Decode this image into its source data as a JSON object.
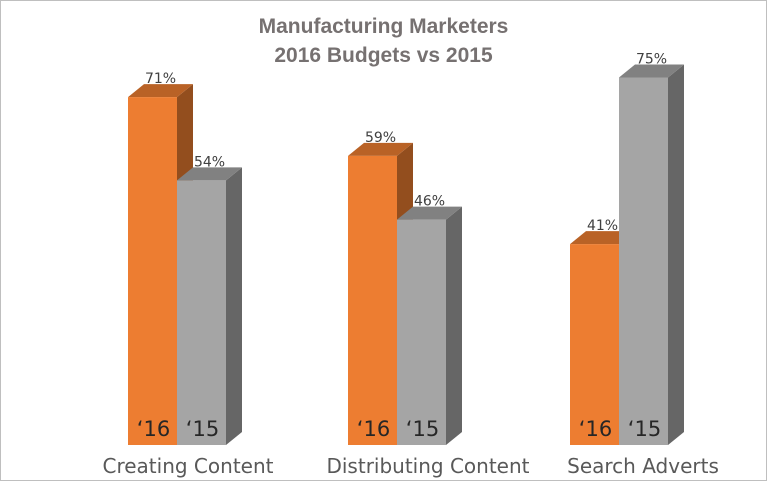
{
  "chart_data": {
    "type": "bar",
    "title": "Manufacturing Marketers",
    "subtitle": "2016 Budgets vs 2015",
    "categories": [
      "Creating Content",
      "Distributing Content",
      "Search Adverts"
    ],
    "series": [
      {
        "name": "'16",
        "bar_labels": [
          "‘16",
          "‘16",
          "‘16"
        ],
        "values": [
          71,
          59,
          41
        ],
        "value_labels": [
          "71%",
          "59%",
          "41%"
        ],
        "color": "#ED7D31"
      },
      {
        "name": "'15",
        "bar_labels": [
          "‘15",
          "‘15",
          "‘15"
        ],
        "values": [
          54,
          46,
          75
        ],
        "value_labels": [
          "54%",
          "46%",
          "75%"
        ],
        "color": "#A5A5A5"
      }
    ],
    "ylim": [
      0,
      100
    ],
    "grid": false,
    "legend": "none",
    "style": "3d-clustered-column"
  }
}
